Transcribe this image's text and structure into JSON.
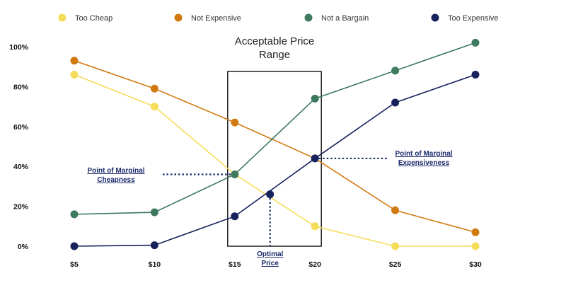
{
  "chart_data": {
    "type": "line",
    "categories": [
      "$5",
      "$10",
      "$15",
      "$20",
      "$25",
      "$30"
    ],
    "x": [
      5,
      10,
      15,
      20,
      25,
      30
    ],
    "xlim": [
      5,
      30
    ],
    "ylim": [
      0,
      100
    ],
    "yticks": [
      "0%",
      "20%",
      "40%",
      "60%",
      "80%",
      "100%"
    ],
    "grid": false,
    "legend_position": "top",
    "series": [
      {
        "name": "Too Cheap",
        "color": "#f5dd5a",
        "values": [
          86,
          70,
          36,
          10,
          0,
          0
        ]
      },
      {
        "name": "Not Expensive",
        "color": "#d27a12",
        "values": [
          93,
          79,
          62,
          44,
          18,
          7
        ]
      },
      {
        "name": "Not a Bargain",
        "color": "#3d7a5e",
        "values": [
          16,
          17,
          36,
          74,
          88,
          102
        ]
      },
      {
        "name": "Too Expensive",
        "color": "#17225c",
        "values": [
          0,
          0.5,
          15,
          44,
          72,
          86
        ]
      }
    ],
    "range_box": {
      "title_lines": [
        "Acceptable Price",
        "Range"
      ],
      "x_from": 15,
      "x_to": 20
    },
    "annotations": {
      "marginal_cheapness": {
        "lines": [
          "Point of Marginal",
          "Cheapness"
        ],
        "x": 15,
        "y": 36
      },
      "marginal_expensiveness": {
        "lines": [
          "Point of Marginal",
          "Expensiveness"
        ],
        "x": 20,
        "y": 44
      },
      "optimal": {
        "lines": [
          "Optimal",
          "Price"
        ],
        "x": 17.2,
        "y": 26
      }
    },
    "annotation_color": "#1b2a6b"
  }
}
